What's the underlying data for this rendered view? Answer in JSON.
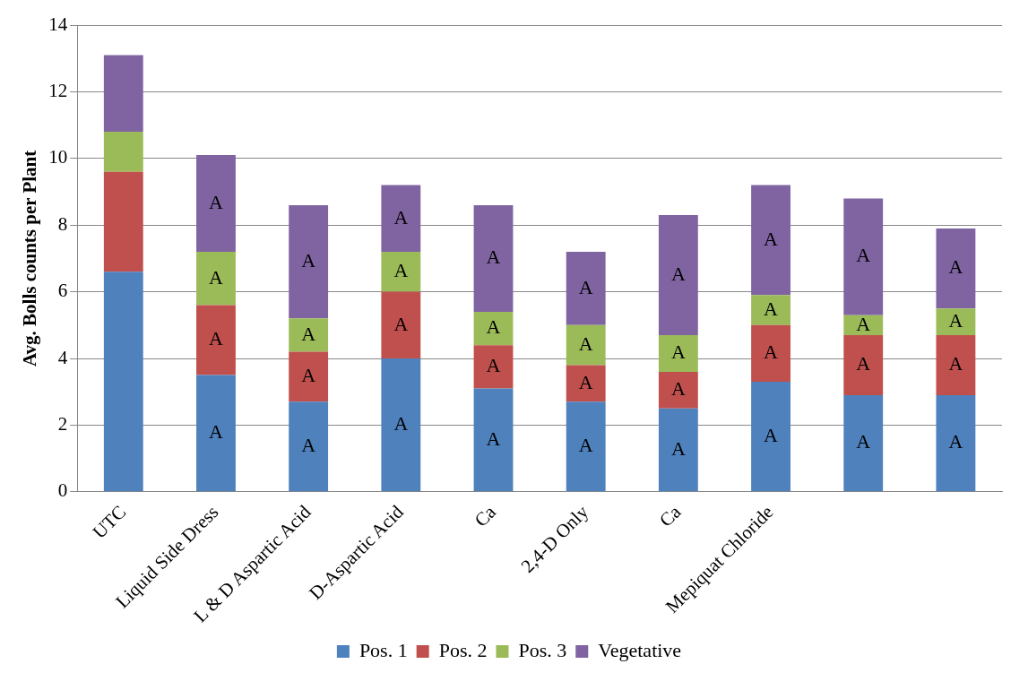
{
  "chart_data": {
    "type": "bar",
    "stacked": true,
    "ylabel": "Avg. Bolls counts per Plant",
    "categories": [
      "UTC",
      "Liquid Side Dress",
      "L & D Aspartic Acid",
      "D-Aspartic Acid",
      "Ca",
      "2,4-D Only",
      "Ca",
      "Mepiquat Chloride",
      null,
      null
    ],
    "series": [
      {
        "name": "Pos. 1",
        "color": "#4f81bd",
        "values": [
          6.6,
          3.5,
          2.7,
          4.0,
          3.1,
          2.7,
          2.5,
          3.3,
          2.9,
          2.9
        ],
        "value_labels": [
          null,
          "A",
          "A",
          "A",
          "A",
          "A",
          "A",
          "A",
          "A",
          "A"
        ]
      },
      {
        "name": "Pos. 2",
        "color": "#c0504d",
        "values": [
          3.0,
          2.1,
          1.5,
          2.0,
          1.3,
          1.1,
          1.1,
          1.7,
          1.8,
          1.8
        ],
        "value_labels": [
          null,
          "A",
          "A",
          "A",
          "A",
          "A",
          "A",
          "A",
          "A",
          "A"
        ]
      },
      {
        "name": "Pos. 3",
        "color": "#9bbb59",
        "values": [
          1.2,
          1.6,
          1.0,
          1.2,
          1.0,
          1.2,
          1.1,
          0.9,
          0.6,
          0.8
        ],
        "value_labels": [
          null,
          "A",
          "A",
          "A",
          "A",
          "A",
          "A",
          "A",
          "A",
          "A"
        ]
      },
      {
        "name": "Vegetative",
        "color": "#8064a2",
        "values": [
          2.3,
          2.9,
          3.4,
          2.0,
          3.2,
          2.2,
          3.6,
          3.3,
          3.5,
          2.4
        ],
        "value_labels": [
          null,
          "A",
          "A",
          "A",
          "A",
          "A",
          "A",
          "A",
          "A",
          "A"
        ]
      }
    ],
    "ylim": [
      0,
      14
    ],
    "yticks": [
      0,
      2,
      4,
      6,
      8,
      10,
      12,
      14
    ],
    "grid": "y",
    "legend": "bottom"
  }
}
